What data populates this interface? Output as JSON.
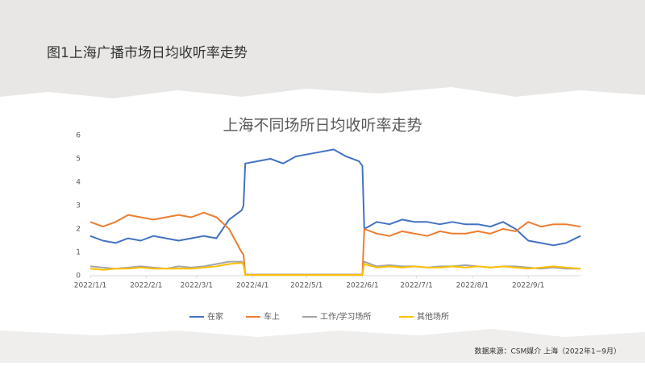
{
  "caption": "图1上海广播市场日均收听率走势",
  "source": "数据来源：CSM媒介  上海（2022年1~9月）",
  "chart_data": {
    "type": "line",
    "title": "上海不同场所日均收听率走势",
    "x": [
      "2022/1/1",
      "2022/1/8",
      "2022/1/15",
      "2022/1/22",
      "2022/1/29",
      "2022/2/5",
      "2022/2/12",
      "2022/2/19",
      "2022/2/26",
      "2022/3/5",
      "2022/3/12",
      "2022/3/19",
      "2022/3/26",
      "2022/3/27",
      "2022/3/28",
      "2022/4/4",
      "2022/4/11",
      "2022/4/18",
      "2022/4/25",
      "2022/5/2",
      "2022/5/9",
      "2022/5/16",
      "2022/5/23",
      "2022/5/30",
      "2022/6/1",
      "2022/6/2",
      "2022/6/9",
      "2022/6/16",
      "2022/6/23",
      "2022/6/30",
      "2022/7/7",
      "2022/7/14",
      "2022/7/21",
      "2022/7/28",
      "2022/8/4",
      "2022/8/11",
      "2022/8/18",
      "2022/8/25",
      "2022/9/1",
      "2022/9/8",
      "2022/9/15",
      "2022/9/22",
      "2022/9/30"
    ],
    "series": [
      {
        "name": "在家",
        "color": "#4472c4",
        "values": [
          1.7,
          1.5,
          1.4,
          1.6,
          1.5,
          1.7,
          1.6,
          1.5,
          1.6,
          1.7,
          1.6,
          2.4,
          2.8,
          3.0,
          4.8,
          4.9,
          5.0,
          4.8,
          5.1,
          5.2,
          5.3,
          5.4,
          5.1,
          4.9,
          4.7,
          2.0,
          2.3,
          2.2,
          2.4,
          2.3,
          2.3,
          2.2,
          2.3,
          2.2,
          2.2,
          2.1,
          2.3,
          2.0,
          1.5,
          1.4,
          1.3,
          1.4,
          1.7
        ]
      },
      {
        "name": "车上",
        "color": "#ed7d31",
        "values": [
          2.3,
          2.1,
          2.3,
          2.6,
          2.5,
          2.4,
          2.5,
          2.6,
          2.5,
          2.7,
          2.5,
          2.0,
          1.0,
          0.9,
          0.05,
          0.05,
          0.05,
          0.05,
          0.05,
          0.05,
          0.05,
          0.05,
          0.05,
          0.05,
          0.05,
          2.0,
          1.8,
          1.7,
          1.9,
          1.8,
          1.7,
          1.9,
          1.8,
          1.8,
          1.9,
          1.8,
          2.0,
          1.9,
          2.3,
          2.1,
          2.2,
          2.2,
          2.1
        ]
      },
      {
        "name": "工作/学习场所",
        "color": "#a5a5a5",
        "values": [
          0.4,
          0.35,
          0.3,
          0.35,
          0.4,
          0.35,
          0.3,
          0.4,
          0.35,
          0.4,
          0.5,
          0.6,
          0.6,
          0.5,
          0.05,
          0.05,
          0.05,
          0.05,
          0.05,
          0.05,
          0.05,
          0.05,
          0.05,
          0.05,
          0.05,
          0.6,
          0.4,
          0.45,
          0.4,
          0.4,
          0.35,
          0.4,
          0.4,
          0.45,
          0.4,
          0.35,
          0.4,
          0.4,
          0.35,
          0.3,
          0.35,
          0.3,
          0.3
        ]
      },
      {
        "name": "其他场所",
        "color": "#ffc000",
        "values": [
          0.3,
          0.25,
          0.3,
          0.3,
          0.35,
          0.3,
          0.3,
          0.3,
          0.3,
          0.35,
          0.4,
          0.5,
          0.55,
          0.45,
          0.03,
          0.03,
          0.03,
          0.03,
          0.03,
          0.03,
          0.03,
          0.03,
          0.03,
          0.03,
          0.03,
          0.5,
          0.35,
          0.4,
          0.35,
          0.4,
          0.35,
          0.35,
          0.4,
          0.35,
          0.4,
          0.35,
          0.4,
          0.35,
          0.3,
          0.35,
          0.4,
          0.35,
          0.3
        ]
      }
    ],
    "xlim": [
      "2022/1/1",
      "2022/9/30"
    ],
    "xticks": [
      "2022/1/1",
      "2022/2/1",
      "2022/3/1",
      "2022/4/1",
      "2022/5/1",
      "2022/6/1",
      "2022/7/1",
      "2022/8/1",
      "2022/9/1"
    ],
    "ylim": [
      0,
      6
    ],
    "yticks": [
      0,
      1,
      2,
      3,
      4,
      5,
      6
    ],
    "grid": false,
    "legend": "bottom"
  }
}
